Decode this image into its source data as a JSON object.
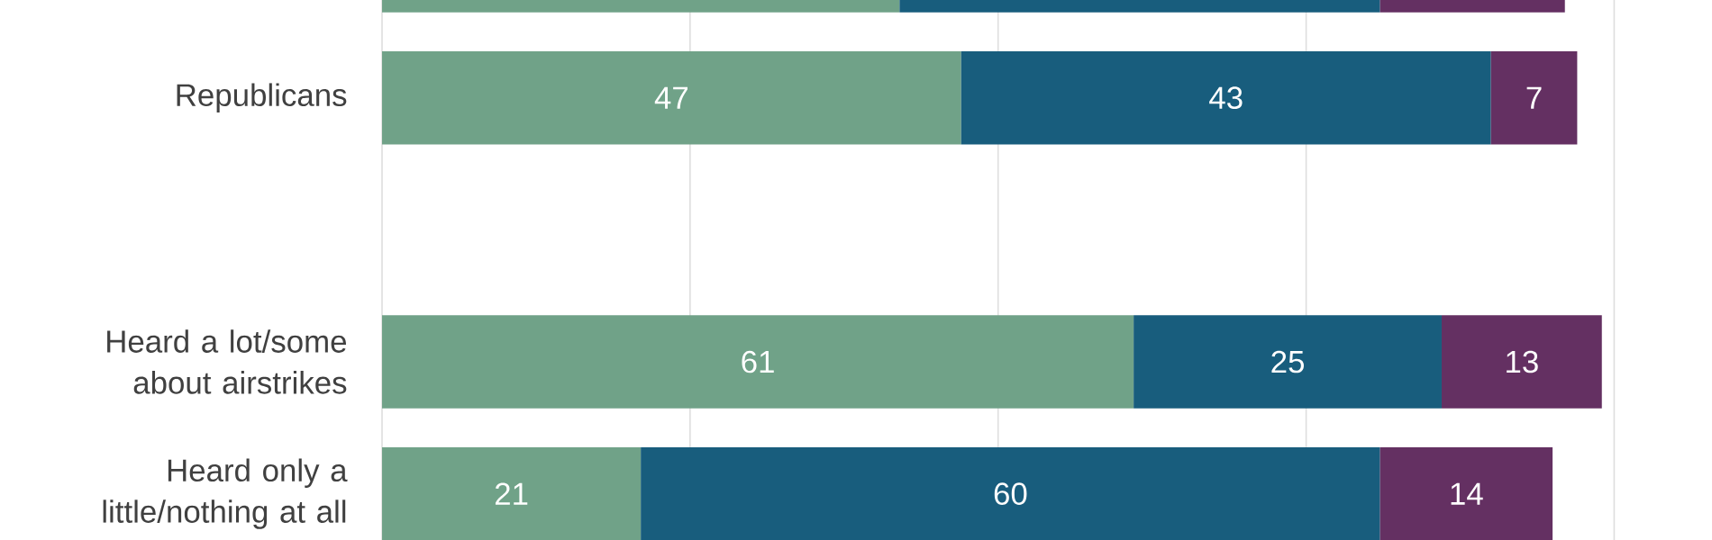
{
  "chart_data": {
    "type": "bar",
    "orientation": "horizontal",
    "stacked": true,
    "categories": [
      null,
      "Republicans",
      null,
      "Heard a lot/some about airstrikes",
      "Heard only a little/nothing at all"
    ],
    "series": [
      {
        "color": "#70a288",
        "values": [
          42,
          47,
          null,
          61,
          21
        ],
        "value_labels": [
          null,
          "47",
          null,
          "61",
          "21"
        ]
      },
      {
        "color": "#185d7d",
        "values": [
          39,
          43,
          null,
          25,
          60
        ],
        "value_labels": [
          null,
          "43",
          null,
          "25",
          "60"
        ]
      },
      {
        "color": "#643062",
        "values": [
          15,
          7,
          null,
          13,
          14
        ],
        "value_labels": [
          null,
          "7",
          null,
          "13",
          "14"
        ]
      }
    ],
    "xlim": [
      0,
      100
    ],
    "xticks": [
      {
        "value": 0,
        "label": null
      },
      {
        "value": 25,
        "label": null
      },
      {
        "value": 50,
        "label": null
      },
      {
        "value": 75,
        "label": null
      },
      {
        "value": 100,
        "label": null
      }
    ],
    "grid": "x",
    "tick_labels": "y"
  }
}
